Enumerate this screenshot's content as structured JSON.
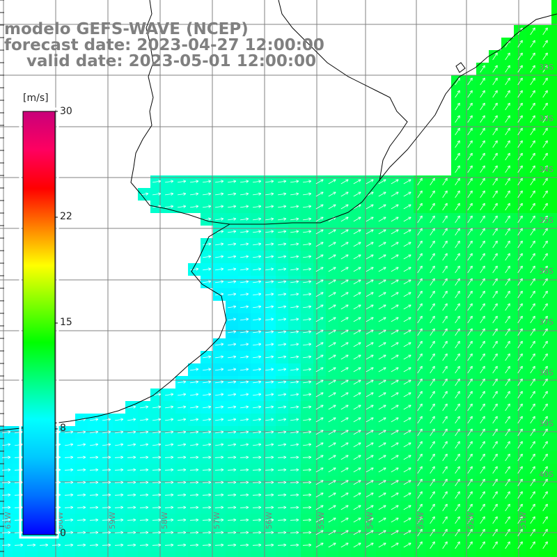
{
  "title": {
    "line1": "modelo GEFS-WAVE (NCEP)",
    "line2": "forecast date: 2023-04-27 12:00:00",
    "line3": "    valid date: 2023-05-01 12:00:00"
  },
  "colorbar": {
    "unit": "[m/s]",
    "ticks": [
      "30",
      "22",
      "15",
      "8",
      "0"
    ],
    "colors": [
      "#0000ff",
      "#0070ff",
      "#00c8ff",
      "#00ffff",
      "#00ff80",
      "#00ff00",
      "#80ff00",
      "#ffff00",
      "#ff8000",
      "#ff0000",
      "#ff0060",
      "#c8007a"
    ]
  },
  "map": {
    "lat_labels": [
      "32S",
      "33S",
      "34S",
      "35S",
      "36S",
      "37S",
      "38S",
      "39S",
      "40S"
    ],
    "lon_labels": [
      "61W",
      "60W",
      "59W",
      "58W",
      "57W",
      "56W",
      "55W",
      "54W",
      "53W",
      "52W",
      "51W"
    ],
    "land_color": "#ffffff",
    "grid_color": "#808080",
    "coast_color": "#000000",
    "arrow_color": "#ffffff"
  }
}
